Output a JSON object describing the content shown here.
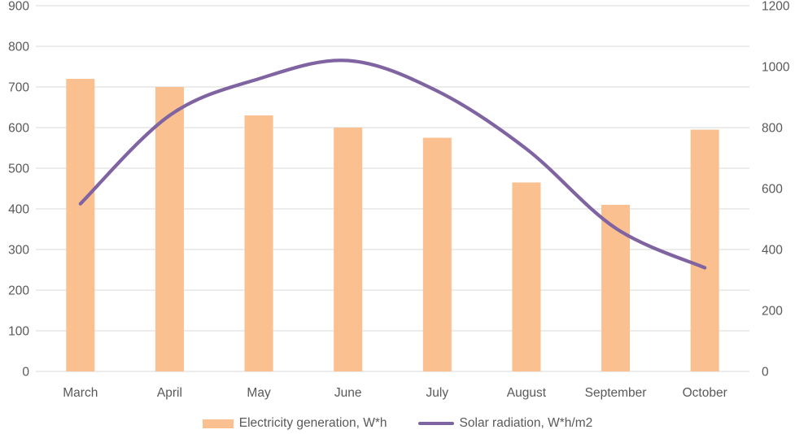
{
  "chart_data": {
    "type": "combo",
    "title": "",
    "categories": [
      "March",
      "April",
      "May",
      "June",
      "July",
      "August",
      "September",
      "October"
    ],
    "series": [
      {
        "name": "Electricity generation, W*h",
        "type": "bar",
        "axis": "left",
        "color": "#FAC090",
        "values": [
          720,
          700,
          630,
          600,
          575,
          465,
          410,
          595
        ]
      },
      {
        "name": "Solar radiation, W*h/m2",
        "type": "line",
        "axis": "right",
        "color": "#8064A2",
        "values": [
          550,
          840,
          960,
          1020,
          920,
          730,
          470,
          340
        ]
      }
    ],
    "axes": {
      "left": {
        "min": 0,
        "max": 900,
        "step": 100,
        "tick_labels": [
          "0",
          "100",
          "200",
          "300",
          "400",
          "500",
          "600",
          "700",
          "800",
          "900"
        ]
      },
      "right": {
        "min": 0,
        "max": 1200,
        "step": 200,
        "tick_labels": [
          "0",
          "200",
          "400",
          "600",
          "800",
          "1000",
          "1200"
        ]
      }
    },
    "grid": true,
    "legend_position": "bottom",
    "text_color": "#595959",
    "gridline_color": "#D9D9D9",
    "background": "#FFFFFF"
  }
}
